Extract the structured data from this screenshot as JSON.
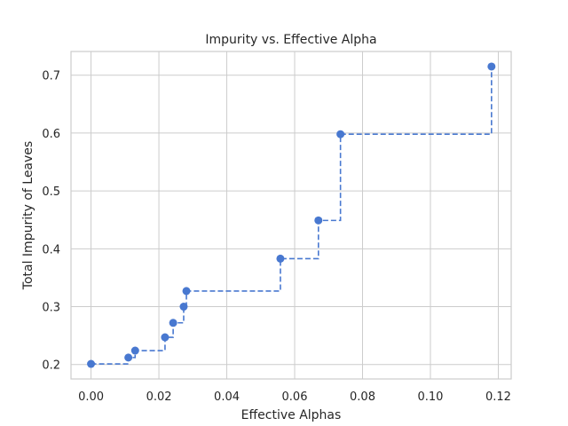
{
  "chart_data": {
    "type": "line",
    "title": "Impurity vs. Effective Alpha",
    "xlabel": "Effective Alphas",
    "ylabel": "Total Impurity of Leaves",
    "xlim": [
      -0.0059,
      0.1238
    ],
    "ylim": [
      0.175,
      0.741
    ],
    "x_ticks": [
      0.0,
      0.02,
      0.04,
      0.06,
      0.08,
      0.1,
      0.12
    ],
    "x_tick_labels": [
      "0.00",
      "0.02",
      "0.04",
      "0.06",
      "0.08",
      "0.10",
      "0.12"
    ],
    "y_ticks": [
      0.2,
      0.3,
      0.4,
      0.5,
      0.6,
      0.7
    ],
    "y_tick_labels": [
      "0.2",
      "0.3",
      "0.4",
      "0.5",
      "0.6",
      "0.7"
    ],
    "grid": true,
    "drawstyle": "steps-post",
    "linestyle": "dashed",
    "marker": "circle",
    "color": "#4878d0",
    "series": [
      {
        "x": [
          0.0,
          0.011,
          0.013,
          0.0218,
          0.0242,
          0.0273,
          0.0281,
          0.0558,
          0.067,
          0.0735,
          0.118
        ],
        "y": [
          0.201,
          0.212,
          0.224,
          0.247,
          0.272,
          0.3,
          0.327,
          0.383,
          0.449,
          0.598,
          0.715
        ]
      }
    ]
  }
}
